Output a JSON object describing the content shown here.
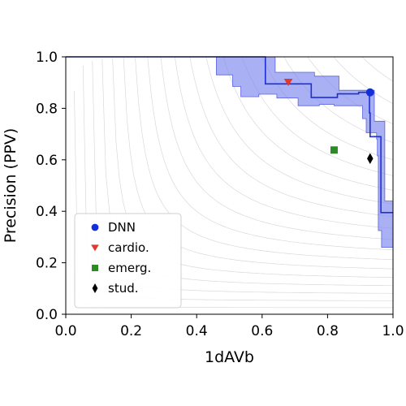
{
  "chart_data": {
    "type": "line",
    "xlabel": "1dAVb",
    "ylabel": "Precision (PPV)",
    "xlim": [
      0.0,
      1.0
    ],
    "ylim": [
      0.0,
      1.0
    ],
    "xticks": [
      "0.0",
      "0.2",
      "0.4",
      "0.6",
      "0.8",
      "1.0"
    ],
    "yticks": [
      "0.0",
      "0.2",
      "0.4",
      "0.6",
      "0.8",
      "1.0"
    ],
    "grid": false,
    "background_curves": "iso-F1 contours",
    "legend_position": "lower-left",
    "curve": {
      "name": "DNN",
      "color": "#1f2fd6",
      "band_color": "#7d86ee",
      "points": [
        [
          0.0,
          1.0
        ],
        [
          0.61,
          1.0
        ],
        [
          0.61,
          0.895
        ],
        [
          0.75,
          0.895
        ],
        [
          0.75,
          0.842
        ],
        [
          0.83,
          0.842
        ],
        [
          0.83,
          0.856
        ],
        [
          0.895,
          0.856
        ],
        [
          0.895,
          0.862
        ],
        [
          0.928,
          0.862
        ],
        [
          0.928,
          0.782
        ],
        [
          0.93,
          0.782
        ],
        [
          0.93,
          0.69
        ],
        [
          0.963,
          0.69
        ],
        [
          0.963,
          0.395
        ],
        [
          1.0,
          0.395
        ]
      ],
      "band_upper": [
        [
          0.46,
          1.0
        ],
        [
          0.6,
          1.0
        ],
        [
          0.6,
          1.0
        ],
        [
          0.64,
          1.0
        ],
        [
          0.64,
          0.94
        ],
        [
          0.76,
          0.94
        ],
        [
          0.76,
          0.925
        ],
        [
          0.835,
          0.925
        ],
        [
          0.835,
          0.87
        ],
        [
          0.928,
          0.87
        ],
        [
          0.928,
          0.87
        ],
        [
          0.943,
          0.87
        ],
        [
          0.943,
          0.75
        ],
        [
          0.975,
          0.75
        ],
        [
          0.975,
          0.44
        ],
        [
          1.0,
          0.44
        ]
      ],
      "band_lower": [
        [
          0.46,
          0.93
        ],
        [
          0.51,
          0.93
        ],
        [
          0.51,
          0.885
        ],
        [
          0.535,
          0.885
        ],
        [
          0.535,
          0.845
        ],
        [
          0.59,
          0.845
        ],
        [
          0.59,
          0.855
        ],
        [
          0.645,
          0.855
        ],
        [
          0.645,
          0.84
        ],
        [
          0.71,
          0.84
        ],
        [
          0.71,
          0.81
        ],
        [
          0.775,
          0.81
        ],
        [
          0.775,
          0.815
        ],
        [
          0.82,
          0.815
        ],
        [
          0.82,
          0.81
        ],
        [
          0.907,
          0.81
        ],
        [
          0.907,
          0.76
        ],
        [
          0.918,
          0.76
        ],
        [
          0.918,
          0.705
        ],
        [
          0.95,
          0.705
        ],
        [
          0.95,
          0.68
        ],
        [
          0.952,
          0.68
        ],
        [
          0.952,
          0.615
        ],
        [
          0.955,
          0.615
        ],
        [
          0.955,
          0.325
        ],
        [
          0.965,
          0.325
        ],
        [
          0.965,
          0.26
        ],
        [
          1.0,
          0.26
        ]
      ]
    },
    "series": [
      {
        "name": "DNN",
        "marker": "circle",
        "color": "#1130d9",
        "x": 0.93,
        "y": 0.862
      },
      {
        "name": "cardio.",
        "marker": "triangle-down",
        "color": "#e03a2f",
        "x": 0.68,
        "y": 0.902
      },
      {
        "name": "emerg.",
        "marker": "square",
        "color": "#2d8a27",
        "x": 0.82,
        "y": 0.638
      },
      {
        "name": "stud.",
        "marker": "diamond",
        "color": "#000000",
        "x": 0.93,
        "y": 0.605
      }
    ]
  }
}
